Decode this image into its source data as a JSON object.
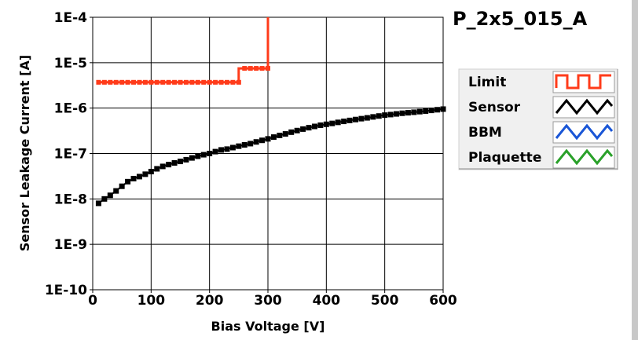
{
  "chart_data": {
    "type": "line",
    "title": "P_2x5_015_A",
    "xlabel": "Bias Voltage [V]",
    "ylabel": "Sensor Leakage Current [A]",
    "xlim": [
      0,
      600
    ],
    "ylim": [
      1e-10,
      0.0001
    ],
    "yscale": "log",
    "grid": true,
    "legend_position": "right",
    "x_ticks": [
      "0",
      "100",
      "200",
      "300",
      "400",
      "500",
      "600"
    ],
    "y_ticks": [
      "1E-10",
      "1E-9",
      "1E-8",
      "1E-7",
      "1E-6",
      "1E-5",
      "1E-4"
    ],
    "series": [
      {
        "name": "Limit",
        "color": "#ff3b1a",
        "style": "step",
        "x": [
          10,
          250,
          250,
          260,
          270,
          280,
          290,
          300,
          300
        ],
        "y": [
          3.7e-06,
          3.7e-06,
          7.5e-06,
          7.5e-06,
          7.5e-06,
          7.5e-06,
          7.5e-06,
          7.5e-06,
          0.0001
        ],
        "markers": [
          [
            10,
            3.7e-06
          ],
          [
            20,
            3.7e-06
          ],
          [
            30,
            3.7e-06
          ],
          [
            40,
            3.7e-06
          ],
          [
            50,
            3.7e-06
          ],
          [
            60,
            3.7e-06
          ],
          [
            70,
            3.7e-06
          ],
          [
            80,
            3.7e-06
          ],
          [
            90,
            3.7e-06
          ],
          [
            100,
            3.7e-06
          ],
          [
            110,
            3.7e-06
          ],
          [
            120,
            3.7e-06
          ],
          [
            130,
            3.7e-06
          ],
          [
            140,
            3.7e-06
          ],
          [
            150,
            3.7e-06
          ],
          [
            160,
            3.7e-06
          ],
          [
            170,
            3.7e-06
          ],
          [
            180,
            3.7e-06
          ],
          [
            190,
            3.7e-06
          ],
          [
            200,
            3.7e-06
          ],
          [
            210,
            3.7e-06
          ],
          [
            220,
            3.7e-06
          ],
          [
            230,
            3.7e-06
          ],
          [
            240,
            3.7e-06
          ],
          [
            250,
            3.7e-06
          ],
          [
            260,
            7.5e-06
          ],
          [
            270,
            7.5e-06
          ],
          [
            280,
            7.5e-06
          ],
          [
            290,
            7.5e-06
          ],
          [
            300,
            7.5e-06
          ]
        ]
      },
      {
        "name": "Sensor",
        "color": "#000000",
        "style": "markers",
        "x": [
          10,
          20,
          30,
          40,
          50,
          60,
          70,
          80,
          90,
          100,
          110,
          120,
          130,
          140,
          150,
          160,
          170,
          180,
          190,
          200,
          210,
          220,
          230,
          240,
          250,
          260,
          270,
          280,
          290,
          300,
          310,
          320,
          330,
          340,
          350,
          360,
          370,
          380,
          390,
          400,
          410,
          420,
          430,
          440,
          450,
          460,
          470,
          480,
          490,
          500,
          510,
          520,
          530,
          540,
          550,
          560,
          570,
          580,
          590,
          600
        ],
        "y": [
          8e-09,
          1e-08,
          1.2e-08,
          1.5e-08,
          1.9e-08,
          2.4e-08,
          2.8e-08,
          3.1e-08,
          3.5e-08,
          4e-08,
          4.6e-08,
          5.2e-08,
          5.7e-08,
          6.2e-08,
          6.7e-08,
          7.3e-08,
          8e-08,
          8.7e-08,
          9.4e-08,
          1e-07,
          1.1e-07,
          1.2e-07,
          1.25e-07,
          1.35e-07,
          1.45e-07,
          1.55e-07,
          1.65e-07,
          1.8e-07,
          1.95e-07,
          2.1e-07,
          2.3e-07,
          2.5e-07,
          2.7e-07,
          2.95e-07,
          3.2e-07,
          3.45e-07,
          3.7e-07,
          3.95e-07,
          4.2e-07,
          4.4e-07,
          4.6e-07,
          4.85e-07,
          5.1e-07,
          5.35e-07,
          5.6e-07,
          5.85e-07,
          6.1e-07,
          6.4e-07,
          6.7e-07,
          7e-07,
          7.2e-07,
          7.45e-07,
          7.7e-07,
          7.9e-07,
          8.1e-07,
          8.35e-07,
          8.6e-07,
          8.9e-07,
          9.2e-07,
          9.5e-07
        ]
      },
      {
        "name": "BBM",
        "color": "#1a56d6",
        "style": "line",
        "x": [],
        "y": []
      },
      {
        "name": "Plaquette",
        "color": "#2aa12a",
        "style": "line",
        "x": [],
        "y": []
      }
    ]
  }
}
